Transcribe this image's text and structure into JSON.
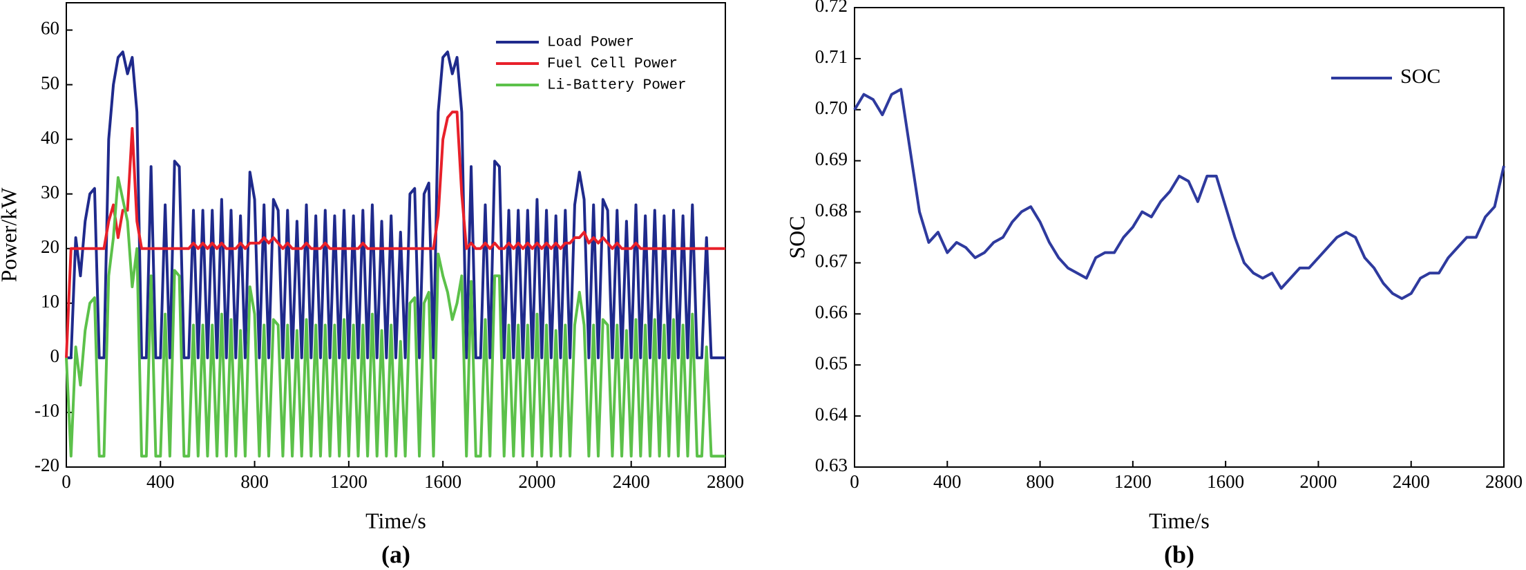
{
  "chart_data": [
    {
      "type": "line",
      "xlabel": "Time/s",
      "ylabel": "Power/kW",
      "panel_label": "(a)",
      "legend": "upper right",
      "xlim": [
        0,
        2800
      ],
      "xticks": [
        0,
        400,
        800,
        1200,
        1600,
        2000,
        2400,
        2800
      ],
      "ylim": [
        -20,
        65
      ],
      "yticks": [
        -20,
        -10,
        0,
        10,
        20,
        30,
        40,
        50,
        60
      ],
      "x": [
        0,
        20,
        40,
        60,
        80,
        100,
        120,
        140,
        160,
        180,
        200,
        220,
        240,
        260,
        280,
        300,
        320,
        340,
        360,
        380,
        400,
        420,
        440,
        460,
        480,
        500,
        520,
        540,
        560,
        580,
        600,
        620,
        640,
        660,
        680,
        700,
        720,
        740,
        760,
        780,
        800,
        820,
        840,
        860,
        880,
        900,
        920,
        940,
        960,
        980,
        1000,
        1020,
        1040,
        1060,
        1080,
        1100,
        1120,
        1140,
        1160,
        1180,
        1200,
        1220,
        1240,
        1260,
        1280,
        1300,
        1320,
        1340,
        1360,
        1380,
        1400,
        1420,
        1440,
        1460,
        1480,
        1500,
        1520,
        1540,
        1560,
        1580,
        1600,
        1620,
        1640,
        1660,
        1680,
        1700,
        1720,
        1740,
        1760,
        1780,
        1800,
        1820,
        1840,
        1860,
        1880,
        1900,
        1920,
        1940,
        1960,
        1980,
        2000,
        2020,
        2040,
        2060,
        2080,
        2100,
        2120,
        2140,
        2160,
        2180,
        2200,
        2220,
        2240,
        2260,
        2280,
        2300,
        2320,
        2340,
        2360,
        2380,
        2400,
        2420,
        2440,
        2460,
        2480,
        2500,
        2520,
        2540,
        2560,
        2580,
        2600,
        2620,
        2640,
        2660,
        2680,
        2700,
        2720,
        2740,
        2760,
        2780,
        2800
      ],
      "series": [
        {
          "name": "Load Power",
          "color": "#1f2a8c",
          "values": [
            0,
            0,
            22,
            15,
            25,
            30,
            31,
            0,
            0,
            40,
            50,
            55,
            56,
            52,
            55,
            45,
            0,
            0,
            35,
            0,
            0,
            28,
            0,
            36,
            35,
            0,
            0,
            27,
            0,
            27,
            0,
            27,
            0,
            29,
            0,
            27,
            0,
            26,
            0,
            34,
            29,
            0,
            28,
            0,
            29,
            27,
            0,
            27,
            0,
            25,
            0,
            28,
            0,
            26,
            0,
            27,
            0,
            26,
            0,
            27,
            0,
            26,
            0,
            27,
            0,
            28,
            0,
            25,
            0,
            26,
            0,
            23,
            0,
            30,
            31,
            0,
            30,
            32,
            0,
            45,
            55,
            56,
            52,
            55,
            45,
            0,
            35,
            0,
            0,
            28,
            0,
            36,
            35,
            0,
            27,
            0,
            27,
            0,
            27,
            0,
            29,
            0,
            27,
            0,
            26,
            0,
            27,
            0,
            28,
            34,
            29,
            0,
            28,
            0,
            29,
            27,
            0,
            27,
            0,
            25,
            0,
            28,
            0,
            26,
            0,
            27,
            0,
            26,
            0,
            27,
            0,
            26,
            0,
            28,
            0,
            0,
            22,
            0,
            0,
            0,
            0
          ]
        },
        {
          "name": "Fuel Cell Power",
          "color": "#e8202a",
          "values": [
            0,
            20,
            20,
            20,
            20,
            20,
            20,
            20,
            20,
            25,
            28,
            22,
            27,
            27,
            42,
            25,
            20,
            20,
            20,
            20,
            20,
            20,
            20,
            20,
            20,
            20,
            20,
            21,
            20,
            21,
            20,
            21,
            20,
            21,
            20,
            20,
            20,
            21,
            20,
            21,
            21,
            21,
            22,
            21,
            22,
            21,
            20,
            21,
            20,
            20,
            20,
            21,
            20,
            20,
            20,
            21,
            20,
            20,
            20,
            20,
            20,
            20,
            20,
            21,
            20,
            20,
            20,
            20,
            20,
            20,
            20,
            20,
            20,
            20,
            20,
            20,
            20,
            20,
            20,
            26,
            40,
            44,
            45,
            45,
            30,
            20,
            21,
            20,
            20,
            21,
            20,
            21,
            20,
            20,
            21,
            20,
            21,
            20,
            21,
            20,
            21,
            20,
            21,
            20,
            21,
            20,
            21,
            21,
            22,
            22,
            23,
            21,
            22,
            21,
            22,
            21,
            20,
            21,
            20,
            20,
            20,
            21,
            20,
            20,
            20,
            20,
            20,
            20,
            20,
            20,
            20,
            20,
            20,
            20,
            20,
            20,
            20,
            20,
            20,
            20,
            20
          ]
        },
        {
          "name": "Li-Battery Power",
          "color": "#5cc14a",
          "values": [
            0,
            -18,
            2,
            -5,
            5,
            10,
            11,
            -18,
            -18,
            15,
            22,
            33,
            29,
            25,
            13,
            20,
            -18,
            -18,
            15,
            -18,
            -18,
            8,
            -18,
            16,
            15,
            -18,
            -18,
            6,
            -18,
            6,
            -18,
            6,
            -18,
            8,
            -18,
            7,
            -18,
            5,
            -18,
            13,
            8,
            -18,
            6,
            -18,
            7,
            6,
            -18,
            6,
            -18,
            5,
            -18,
            7,
            -18,
            6,
            -18,
            6,
            -18,
            6,
            -18,
            7,
            -18,
            6,
            -18,
            6,
            -18,
            8,
            -18,
            5,
            -18,
            6,
            -18,
            3,
            -18,
            10,
            11,
            -18,
            10,
            12,
            -18,
            19,
            15,
            12,
            7,
            10,
            15,
            -18,
            14,
            -18,
            -18,
            7,
            -18,
            15,
            15,
            -18,
            6,
            -18,
            6,
            -18,
            6,
            -18,
            8,
            -18,
            6,
            -18,
            5,
            -18,
            6,
            -18,
            6,
            12,
            6,
            -18,
            6,
            -18,
            7,
            6,
            -18,
            6,
            -18,
            5,
            -18,
            7,
            -18,
            6,
            -18,
            7,
            -18,
            6,
            -18,
            7,
            -18,
            6,
            -18,
            8,
            -18,
            -18,
            2,
            -18,
            -18,
            -18,
            -18
          ]
        }
      ]
    },
    {
      "type": "line",
      "xlabel": "Time/s",
      "ylabel": "SOC",
      "panel_label": "(b)",
      "legend": "upper right",
      "xlim": [
        0,
        2800
      ],
      "xticks": [
        0,
        400,
        800,
        1200,
        1600,
        2000,
        2400,
        2800
      ],
      "ylim": [
        0.63,
        0.72
      ],
      "yticks": [
        0.63,
        0.64,
        0.65,
        0.66,
        0.67,
        0.68,
        0.69,
        {
          "value": 0.7,
          "label": "0.70"
        },
        0.71,
        0.72
      ],
      "x": [
        0,
        40,
        80,
        120,
        160,
        200,
        240,
        280,
        320,
        360,
        400,
        440,
        480,
        520,
        560,
        600,
        640,
        680,
        720,
        760,
        800,
        840,
        880,
        920,
        960,
        1000,
        1040,
        1080,
        1120,
        1160,
        1200,
        1240,
        1280,
        1320,
        1360,
        1400,
        1440,
        1480,
        1520,
        1560,
        1600,
        1640,
        1680,
        1720,
        1760,
        1800,
        1840,
        1880,
        1920,
        1960,
        2000,
        2040,
        2080,
        2120,
        2160,
        2200,
        2240,
        2280,
        2320,
        2360,
        2400,
        2440,
        2480,
        2520,
        2560,
        2600,
        2640,
        2680,
        2720,
        2760,
        2800
      ],
      "series": [
        {
          "name": "SOC",
          "color": "#2e3a9e",
          "values": [
            0.7,
            0.703,
            0.702,
            0.699,
            0.703,
            0.704,
            0.692,
            0.68,
            0.674,
            0.676,
            0.672,
            0.674,
            0.673,
            0.671,
            0.672,
            0.674,
            0.675,
            0.678,
            0.68,
            0.681,
            0.678,
            0.674,
            0.671,
            0.669,
            0.668,
            0.667,
            0.671,
            0.672,
            0.672,
            0.675,
            0.677,
            0.68,
            0.679,
            0.682,
            0.684,
            0.687,
            0.686,
            0.682,
            0.687,
            0.687,
            0.681,
            0.675,
            0.67,
            0.668,
            0.667,
            0.668,
            0.665,
            0.667,
            0.669,
            0.669,
            0.671,
            0.673,
            0.675,
            0.676,
            0.675,
            0.671,
            0.669,
            0.666,
            0.664,
            0.663,
            0.664,
            0.667,
            0.668,
            0.668,
            0.671,
            0.673,
            0.675,
            0.675,
            0.679,
            0.681,
            0.689
          ]
        }
      ]
    }
  ]
}
